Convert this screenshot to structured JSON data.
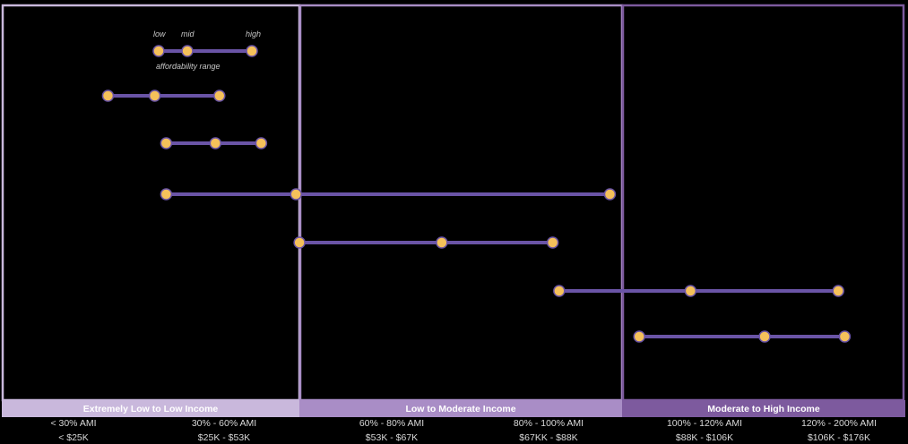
{
  "chart_data": {
    "type": "range",
    "title": "",
    "legend": {
      "low": "low",
      "mid": "mid",
      "high": "high",
      "caption": "affordability range"
    },
    "income_bands": [
      {
        "label": "Extremely Low to Low Income",
        "color": "#c9b8dc"
      },
      {
        "label": "Low to Moderate Income",
        "color": "#a98dc6"
      },
      {
        "label": "Moderate to High Income",
        "color": "#7d5a9e"
      }
    ],
    "ami_ticks": [
      {
        "ami": "< 30% AMI",
        "income": "< $25K"
      },
      {
        "ami": "30% - 60% AMI",
        "income": "$25K - $53K"
      },
      {
        "ami": "60% - 80% AMI",
        "income": "$53K - $67K"
      },
      {
        "ami": "80% - 100% AMI",
        "income": "$67KK - $88K"
      },
      {
        "ami": "100% - 120% AMI",
        "income": "$88K - $106K"
      },
      {
        "ami": "120% - 200% AMI",
        "income": "$106K - $176K"
      }
    ],
    "x_unit": "income ($K)",
    "xlim": [
      0,
      183
    ],
    "ranges": [
      {
        "low": 19.9,
        "mid": 29.3,
        "high": 42.3
      },
      {
        "low": 31.6,
        "mid": 41.5,
        "high": 50.7
      },
      {
        "low": 31.6,
        "mid": 57.7,
        "high": 120.8
      },
      {
        "low": 58.4,
        "mid": 87.0,
        "high": 109.3
      },
      {
        "low": 110.6,
        "mid": 137.0,
        "high": 166.7
      },
      {
        "low": 126.7,
        "mid": 151.9,
        "high": 168.0
      }
    ],
    "series_color": "#6a54a6",
    "marker_color": "#f5c15a"
  }
}
